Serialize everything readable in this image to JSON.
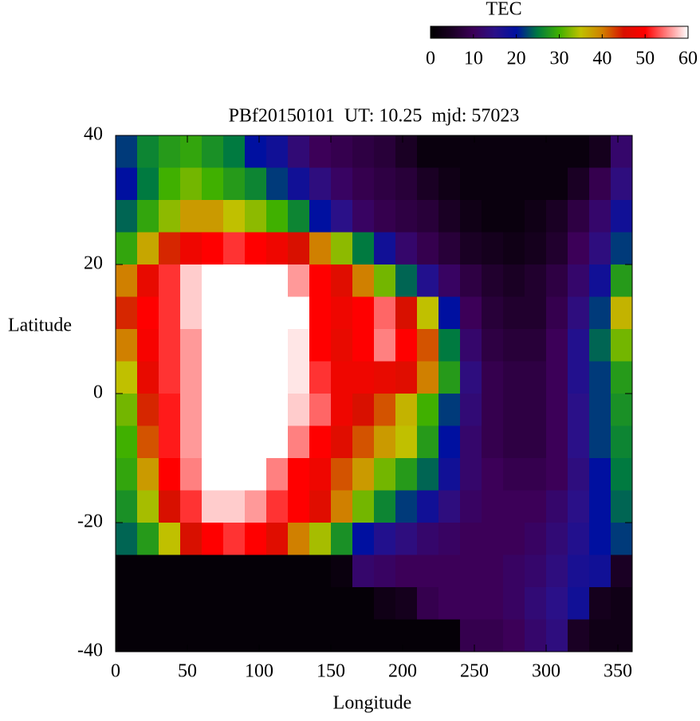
{
  "chart_data": {
    "type": "heatmap",
    "title": "PBf20150101  UT: 10.25  mjd: 57023",
    "xlabel": "Longitude",
    "ylabel": "Latitude",
    "xlim": [
      0,
      360
    ],
    "xticks": [
      0,
      50,
      100,
      150,
      200,
      250,
      300,
      350
    ],
    "ylim": [
      -40,
      40
    ],
    "yticks": [
      -40,
      -20,
      0,
      20,
      40
    ],
    "x": [
      7.5,
      22.5,
      37.5,
      52.5,
      67.5,
      82.5,
      97.5,
      112.5,
      127.5,
      142.5,
      157.5,
      172.5,
      187.5,
      202.5,
      217.5,
      232.5,
      247.5,
      262.5,
      277.5,
      292.5,
      307.5,
      322.5,
      337.5,
      352.5
    ],
    "y": [
      37.5,
      32.5,
      27.5,
      22.5,
      17.5,
      12.5,
      7.5,
      2.5,
      -2.5,
      -7.5,
      -12.5,
      -17.5,
      -22.5,
      -27.5,
      -32.5,
      -37.5
    ],
    "values": [
      [
        22,
        26,
        28,
        29,
        27,
        25,
        20,
        18,
        13,
        10,
        9,
        8,
        7,
        5,
        2,
        2,
        2,
        2,
        2,
        2,
        2,
        2,
        4,
        12
      ],
      [
        20,
        25,
        30,
        32,
        30,
        28,
        26,
        22,
        18,
        14,
        11,
        9,
        8,
        7,
        5,
        3,
        2,
        2,
        2,
        2,
        2,
        5,
        9,
        14
      ],
      [
        24,
        29,
        33,
        38,
        38,
        35,
        33,
        30,
        26,
        20,
        15,
        11,
        9,
        8,
        7,
        5,
        3,
        2,
        2,
        3,
        5,
        8,
        12,
        18
      ],
      [
        29,
        37,
        44,
        48,
        50,
        52,
        50,
        48,
        45,
        40,
        33,
        25,
        18,
        12,
        9,
        7,
        5,
        4,
        3,
        4,
        6,
        10,
        14,
        22
      ],
      [
        40,
        47,
        52,
        58,
        60,
        60,
        60,
        60,
        56,
        50,
        46,
        40,
        32,
        24,
        16,
        11,
        8,
        6,
        5,
        6,
        8,
        12,
        18,
        28
      ],
      [
        44,
        50,
        52,
        58,
        60,
        60,
        60,
        60,
        60,
        50,
        48,
        50,
        54,
        45,
        35,
        20,
        10,
        7,
        6,
        6,
        9,
        14,
        22,
        36
      ],
      [
        40,
        49,
        52,
        56,
        60,
        60,
        60,
        60,
        59,
        50,
        47,
        50,
        55,
        50,
        42,
        25,
        12,
        8,
        7,
        7,
        10,
        16,
        24,
        32
      ],
      [
        35,
        47,
        52,
        56,
        60,
        60,
        60,
        60,
        59,
        52,
        48,
        48,
        47,
        46,
        40,
        28,
        14,
        9,
        8,
        8,
        10,
        16,
        22,
        28
      ],
      [
        32,
        44,
        51,
        56,
        60,
        60,
        60,
        60,
        58,
        54,
        48,
        45,
        42,
        36,
        30,
        22,
        13,
        9,
        8,
        8,
        10,
        15,
        22,
        27
      ],
      [
        30,
        42,
        51,
        56,
        60,
        60,
        60,
        60,
        55,
        50,
        46,
        42,
        38,
        35,
        28,
        20,
        12,
        9,
        8,
        8,
        10,
        15,
        22,
        26
      ],
      [
        29,
        38,
        50,
        55,
        60,
        60,
        60,
        55,
        50,
        48,
        42,
        38,
        32,
        28,
        24,
        18,
        12,
        10,
        9,
        9,
        10,
        14,
        20,
        25
      ],
      [
        27,
        34,
        45,
        52,
        58,
        58,
        56,
        52,
        50,
        46,
        40,
        32,
        26,
        22,
        18,
        14,
        11,
        10,
        10,
        10,
        12,
        15,
        20,
        24
      ],
      [
        24,
        28,
        35,
        45,
        50,
        52,
        50,
        46,
        40,
        34,
        27,
        20,
        16,
        14,
        12,
        11,
        10,
        10,
        10,
        11,
        13,
        16,
        20,
        22
      ],
      [
        1,
        1,
        1,
        1,
        1,
        1,
        1,
        1,
        1,
        1,
        2,
        12,
        11,
        10,
        10,
        10,
        10,
        10,
        11,
        12,
        14,
        17,
        18,
        5
      ],
      [
        1,
        1,
        1,
        1,
        1,
        1,
        1,
        1,
        1,
        1,
        1,
        1,
        3,
        4,
        9,
        10,
        10,
        10,
        11,
        13,
        15,
        18,
        4,
        3
      ],
      [
        1,
        1,
        1,
        1,
        1,
        1,
        1,
        1,
        1,
        1,
        1,
        1,
        1,
        1,
        1,
        1,
        9,
        9,
        10,
        12,
        14,
        5,
        3,
        3
      ]
    ],
    "colorbar": {
      "label": "TEC",
      "lim": [
        0,
        60
      ],
      "ticks": [
        0,
        10,
        20,
        30,
        40,
        50,
        60
      ],
      "colors": [
        "#000000",
        "#1a0024",
        "#3c0058",
        "#2a1088",
        "#0010a0",
        "#007a40",
        "#40b000",
        "#c0c000",
        "#d08000",
        "#d81000",
        "#ff0000",
        "#ff8080",
        "#ffffff"
      ]
    }
  }
}
